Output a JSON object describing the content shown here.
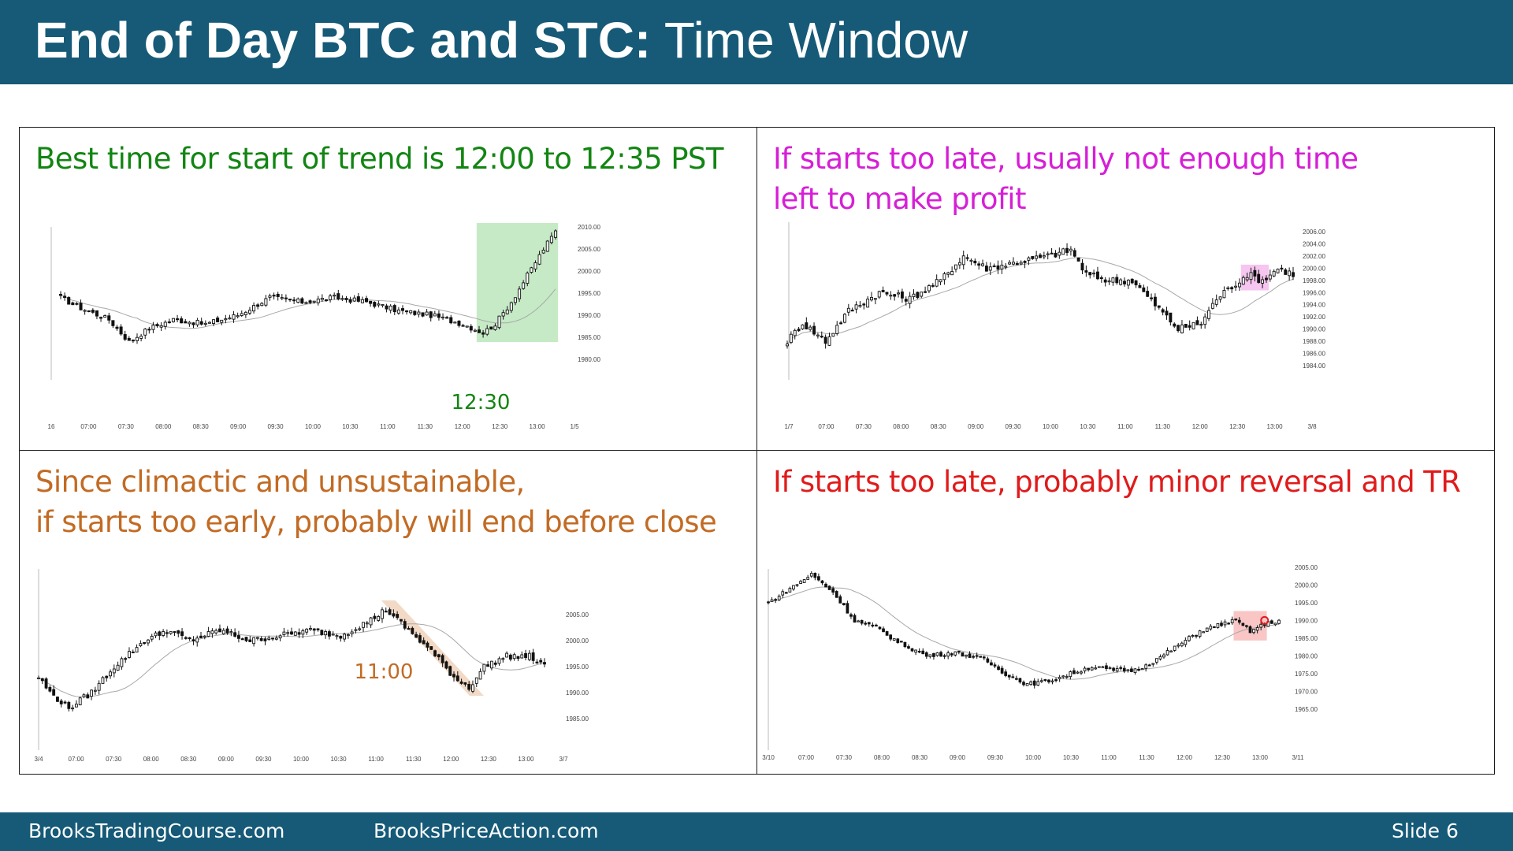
{
  "title": {
    "bold": "End of Day BTC and STC:",
    "normal": " Time Window"
  },
  "footer": {
    "left": "BrooksTradingCourse.com",
    "center": "BrooksPriceAction.com",
    "slide": "Slide  6"
  },
  "panels": [
    {
      "caption": [
        "Best time for start of trend is 12:00 to 12:35 PST"
      ],
      "caption_color": "#128512",
      "chart_data": {
        "type": "candlestick",
        "y_ticks": [
          "2010.00",
          "2005.00",
          "2000.00",
          "1995.00",
          "1990.00",
          "1985.00",
          "1980.00"
        ],
        "ylim": [
          1980,
          2010
        ],
        "x_labels": [
          "16",
          "07:00",
          "07:30",
          "08:00",
          "08:30",
          "09:00",
          "09:30",
          "10:00",
          "10:30",
          "11:00",
          "11:30",
          "12:00",
          "12:30",
          "13:00",
          "1/5"
        ],
        "anchors": [
          [
            0,
            1994
          ],
          [
            4,
            1992
          ],
          [
            12,
            1989
          ],
          [
            17,
            1984
          ],
          [
            22,
            1987
          ],
          [
            28,
            1989
          ],
          [
            36,
            1988
          ],
          [
            44,
            1990
          ],
          [
            52,
            1994
          ],
          [
            60,
            1993
          ],
          [
            68,
            1994
          ],
          [
            76,
            1993
          ],
          [
            84,
            1991
          ],
          [
            92,
            1990
          ],
          [
            100,
            1988
          ],
          [
            105,
            1986
          ],
          [
            108,
            1988
          ],
          [
            112,
            1993
          ],
          [
            116,
            1999
          ],
          [
            120,
            2005
          ],
          [
            123,
            2009
          ]
        ],
        "annotation": {
          "text": "12:30",
          "color": "#128512"
        },
        "highlight": {
          "from_bar": 104,
          "to_bar": 125,
          "color": "#bfe8bf"
        }
      }
    },
    {
      "caption": [
        "If starts too late, usually not enough time",
        "left to make profit"
      ],
      "caption_color": "#d61fd6",
      "chart_data": {
        "type": "candlestick",
        "y_ticks": [
          "2006.00",
          "2004.00",
          "2002.00",
          "2000.00",
          "1998.00",
          "1996.00",
          "1994.00",
          "1992.00",
          "1990.00",
          "1988.00",
          "1986.00",
          "1984.00"
        ],
        "ylim": [
          1984,
          2006
        ],
        "x_labels": [
          "1/7",
          "07:00",
          "07:30",
          "08:00",
          "08:30",
          "09:00",
          "09:30",
          "10:00",
          "10:30",
          "11:00",
          "11:30",
          "12:00",
          "12:30",
          "13:00",
          "3/8"
        ],
        "anchors": [
          [
            0,
            1988
          ],
          [
            4,
            1991
          ],
          [
            10,
            1988
          ],
          [
            16,
            1993
          ],
          [
            24,
            1996
          ],
          [
            32,
            1995
          ],
          [
            40,
            1998
          ],
          [
            46,
            2002
          ],
          [
            52,
            2000
          ],
          [
            60,
            2001
          ],
          [
            68,
            2002
          ],
          [
            74,
            2003
          ],
          [
            78,
            1999
          ],
          [
            84,
            1998
          ],
          [
            90,
            1998
          ],
          [
            96,
            1994
          ],
          [
            102,
            1990
          ],
          [
            108,
            1991
          ],
          [
            112,
            1995
          ],
          [
            116,
            1997
          ],
          [
            120,
            1999
          ],
          [
            124,
            1998
          ],
          [
            128,
            2000
          ],
          [
            132,
            1999
          ]
        ],
        "annotation": null,
        "highlight": {
          "from_bar": 119,
          "to_bar": 125,
          "color": "#f4b6ec"
        }
      }
    },
    {
      "caption": [
        "Since climactic and unsustainable,",
        "if starts too early, probably will end before close"
      ],
      "caption_color": "#c26b24",
      "chart_data": {
        "type": "candlestick",
        "y_ticks": [
          "2005.00",
          "2000.00",
          "1995.00",
          "1990.00",
          "1985.00"
        ],
        "ylim": [
          1983,
          2007
        ],
        "x_labels": [
          "3/4",
          "07:00",
          "07:30",
          "08:00",
          "08:30",
          "09:00",
          "09:30",
          "10:00",
          "10:30",
          "11:00",
          "11:30",
          "12:00",
          "12:30",
          "13:00",
          "3/7"
        ],
        "anchors": [
          [
            0,
            1993
          ],
          [
            3,
            1990
          ],
          [
            8,
            1987
          ],
          [
            14,
            1990
          ],
          [
            20,
            1995
          ],
          [
            28,
            2000
          ],
          [
            34,
            2002
          ],
          [
            40,
            2000
          ],
          [
            48,
            2002
          ],
          [
            56,
            2000
          ],
          [
            64,
            2001
          ],
          [
            72,
            2002
          ],
          [
            80,
            2001
          ],
          [
            88,
            2004
          ],
          [
            92,
            2006
          ],
          [
            98,
            2002
          ],
          [
            104,
            1998
          ],
          [
            110,
            1993
          ],
          [
            114,
            1991
          ],
          [
            118,
            1995
          ],
          [
            124,
            1997
          ],
          [
            130,
            1997
          ],
          [
            134,
            1995
          ]
        ],
        "annotation": {
          "text": "11:00",
          "color": "#c26b24"
        },
        "highlight": {
          "from_bar": 92,
          "to_bar": 115,
          "color": "#f0d4bd"
        }
      }
    },
    {
      "caption": [
        "If starts too late, probably minor reversal and TR"
      ],
      "caption_color": "#e01b1b",
      "chart_data": {
        "type": "candlestick",
        "y_ticks": [
          "2005.00",
          "2000.00",
          "1995.00",
          "1990.00",
          "1985.00",
          "1980.00",
          "1975.00",
          "1970.00",
          "1965.00"
        ],
        "ylim": [
          1965,
          2005
        ],
        "x_labels": [
          "3/10",
          "07:00",
          "07:30",
          "08:00",
          "08:30",
          "09:00",
          "09:30",
          "10:00",
          "10:30",
          "11:00",
          "11:30",
          "12:00",
          "12:30",
          "13:00",
          "3/11"
        ],
        "anchors": [
          [
            0,
            1995
          ],
          [
            6,
            1999
          ],
          [
            12,
            2003
          ],
          [
            18,
            1998
          ],
          [
            24,
            1990
          ],
          [
            30,
            1988
          ],
          [
            36,
            1984
          ],
          [
            44,
            1980
          ],
          [
            52,
            1981
          ],
          [
            60,
            1979
          ],
          [
            66,
            1975
          ],
          [
            72,
            1972
          ],
          [
            78,
            1973
          ],
          [
            84,
            1975
          ],
          [
            90,
            1977
          ],
          [
            96,
            1976
          ],
          [
            102,
            1976
          ],
          [
            108,
            1979
          ],
          [
            114,
            1983
          ],
          [
            120,
            1987
          ],
          [
            126,
            1989
          ],
          [
            130,
            1990
          ],
          [
            134,
            1987
          ],
          [
            138,
            1989
          ],
          [
            142,
            1990
          ]
        ],
        "annotation": null,
        "highlight": {
          "from_bar": 130,
          "to_bar": 138,
          "color": "#f8b6b6"
        }
      }
    }
  ]
}
